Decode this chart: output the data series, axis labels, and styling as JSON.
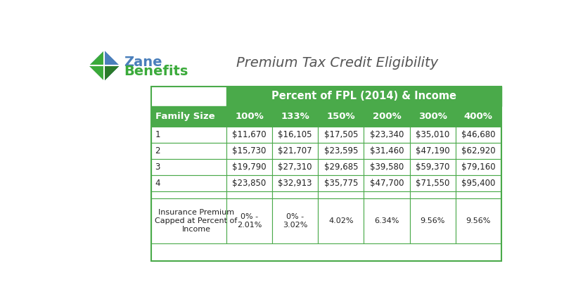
{
  "title": "Premium Tax Credit Eligibility",
  "header_main": "Percent of FPL (2014) & Income",
  "col_headers": [
    "Family Size",
    "100%",
    "133%",
    "150%",
    "200%",
    "300%",
    "400%"
  ],
  "rows": [
    [
      "1",
      "$11,670",
      "$16,105",
      "$17,505",
      "$23,340",
      "$35,010",
      "$46,680"
    ],
    [
      "2",
      "$15,730",
      "$21,707",
      "$23,595",
      "$31,460",
      "$47,190",
      "$62,920"
    ],
    [
      "3",
      "$19,790",
      "$27,310",
      "$29,685",
      "$39,580",
      "$59,370",
      "$79,160"
    ],
    [
      "4",
      "$23,850",
      "$32,913",
      "$35,775",
      "$47,700",
      "$71,550",
      "$95,400"
    ],
    [
      "",
      "",
      "",
      "",
      "",
      "",
      ""
    ],
    [
      "Insurance Premium\nCapped at Percent of\nIncome",
      "0% -\n2.01%",
      "0% -\n3.02%",
      "4.02%",
      "6.34%",
      "9.56%",
      "9.56%"
    ]
  ],
  "green_dark": "#4aaa4a",
  "green_mid": "#3a9a3a",
  "white": "#ffffff",
  "text_white": "#ffffff",
  "text_dark": "#222222",
  "border_green": "#4aaa4a",
  "outer_bg": "#ffffff",
  "logo_blue": "#4a7fbb",
  "logo_green": "#3aaa3a",
  "logo_dark_green": "#2a7a2a",
  "title_color": "#555555",
  "zane_color": "#4a7fbb",
  "benefits_color": "#3aaa3a"
}
